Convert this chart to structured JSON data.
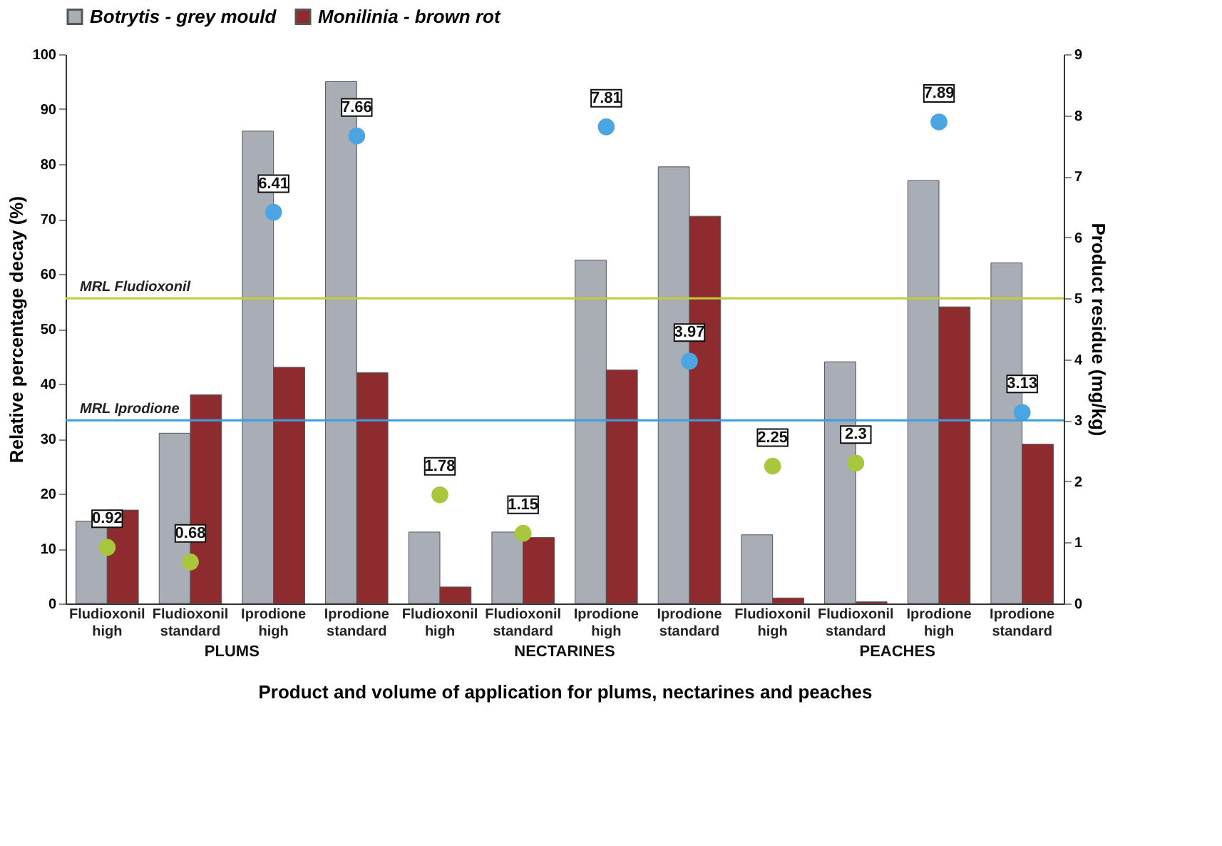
{
  "chart_data": {
    "type": "bar",
    "xlabel": "Product and volume of application for plums, nectarines and peaches",
    "ylabel": "Relative percentage decay (%)",
    "y2label": "Product residue (mg/kg)",
    "categories": [
      "Fludioxonil high",
      "Fludioxonil standard",
      "Iprodione high",
      "Iprodione standard",
      "Fludioxonil high",
      "Fludioxonil standard",
      "Iprodione high",
      "Iprodione standard",
      "Fludioxonil high",
      "Fludioxonil standard",
      "Iprodione high",
      "Iprodione standard"
    ],
    "series": [
      {
        "name": "Botrytis - grey mould",
        "color": "#a9aeb6",
        "values": [
          15,
          31,
          86,
          95,
          13,
          13,
          62.5,
          79.5,
          12.5,
          44,
          77,
          62
        ]
      },
      {
        "name": "Monilinia - brown rot",
        "color": "#8e2b2f",
        "values": [
          17,
          38,
          43,
          42,
          3,
          12,
          42.5,
          70.5,
          1,
          0.3,
          54,
          29
        ]
      },
      {
        "type": "scatter",
        "axis": "y2",
        "color": "#a9c73c",
        "data_labels": true,
        "values": [
          0.92,
          0.68,
          null,
          null,
          1.78,
          1.15,
          null,
          null,
          2.25,
          2.3,
          null,
          null
        ]
      },
      {
        "type": "scatter",
        "axis": "y2",
        "color": "#4ba5e2",
        "data_labels": true,
        "values": [
          null,
          null,
          6.41,
          7.66,
          null,
          null,
          7.81,
          3.97,
          null,
          null,
          7.89,
          3.13
        ]
      }
    ],
    "ylim": [
      0,
      100
    ],
    "yticks": [
      0,
      10,
      20,
      30,
      40,
      50,
      60,
      70,
      80,
      90,
      100
    ],
    "y2lim": [
      0,
      9
    ],
    "y2ticks": [
      0,
      1,
      2,
      3,
      4,
      5,
      6,
      7,
      8,
      9
    ],
    "ref_lines": [
      {
        "axis": "y2",
        "value": 5,
        "label": "MRL Fludioxonil",
        "color": "#c2cc3a"
      },
      {
        "axis": "y2",
        "value": 3,
        "label": "MRL Iprodione",
        "color": "#3d9de0"
      }
    ],
    "annotations": [
      "PLUMS",
      "NECTARINES",
      "PEACHES"
    ],
    "legend": "top",
    "grid": false,
    "marker": "circle"
  }
}
